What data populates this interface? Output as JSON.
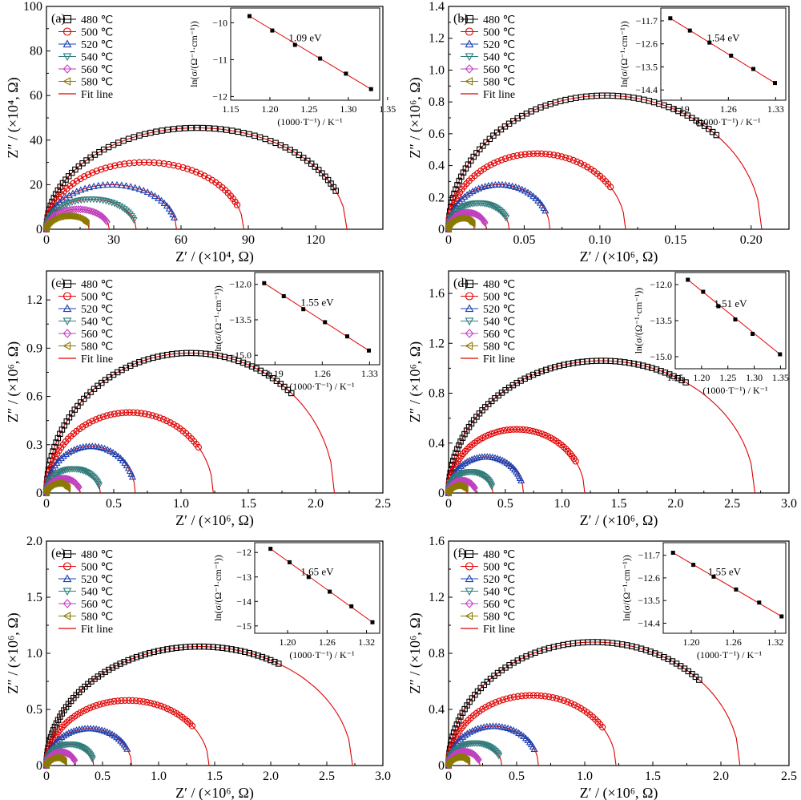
{
  "legend_labels": [
    "480 ℃",
    "500 ℃",
    "520 ℃",
    "540 ℃",
    "560 ℃",
    "580 ℃",
    "Fit line"
  ],
  "series_colors": [
    "#000000",
    "#e00000",
    "#1a3fb0",
    "#2e7d7d",
    "#c040c0",
    "#8a7a00",
    "#e00000"
  ],
  "marker_shapes": [
    "square",
    "circle",
    "triangle-up",
    "triangle-down",
    "diamond",
    "triangle-left"
  ],
  "inset_ylabel": "ln(σ/(Ω⁻¹·cm⁻¹))",
  "inset_xlabel": "(1000·T⁻¹) / K⁻¹",
  "chart_data": [
    {
      "panel": "(a)",
      "type": "scatter",
      "xlabel": "Z′ / (×10⁴, Ω)",
      "ylabel": "Z″ / (×10⁴, Ω)",
      "xlim": [
        0,
        150
      ],
      "ylim": [
        0,
        100
      ],
      "xticks": [
        "0",
        "30",
        "60",
        "90",
        "120"
      ],
      "xtick_values": [
        0,
        30,
        60,
        90,
        120
      ],
      "yticks": [
        "0",
        "20",
        "40",
        "60",
        "80",
        "100"
      ],
      "ytick_values": [
        0,
        20,
        40,
        60,
        80,
        100
      ],
      "series": [
        {
          "name": "480 ℃",
          "x_end": 129,
          "fit_end": 134,
          "peak": 45.5
        },
        {
          "name": "500 ℃",
          "x_end": 85,
          "fit_end": 88,
          "peak": 30
        },
        {
          "name": "520 ℃",
          "x_end": 57,
          "fit_end": 58,
          "peak": 20
        },
        {
          "name": "540 ℃",
          "x_end": 39,
          "fit_end": 40,
          "peak": 13.5
        },
        {
          "name": "560 ℃",
          "x_end": 27,
          "fit_end": 28,
          "peak": 9
        },
        {
          "name": "580 ℃",
          "x_end": 18,
          "fit_end": 19,
          "peak": 6
        }
      ],
      "inset": {
        "xlim": [
          1.15,
          1.34
        ],
        "ylim": [
          -12.1,
          -9.6
        ],
        "xticks": [
          "1.15",
          "1.20",
          "1.25",
          "1.30",
          "1.35"
        ],
        "xtick_values": [
          1.15,
          1.2,
          1.25,
          1.3,
          1.35
        ],
        "yticks": [
          "−10",
          "−11",
          "−12"
        ],
        "ytick_values": [
          -10,
          -11,
          -12
        ],
        "points": [
          [
            1.174,
            -9.82
          ],
          [
            1.203,
            -10.21
          ],
          [
            1.232,
            -10.6
          ],
          [
            1.264,
            -10.97
          ],
          [
            1.297,
            -11.38
          ],
          [
            1.329,
            -11.8
          ]
        ],
        "ea_label": "1.09 eV"
      }
    },
    {
      "panel": "(b)",
      "type": "scatter",
      "xlabel": "Z′ / (×10⁶, Ω)",
      "ylabel": "Z″ / (×10⁶, Ω)",
      "xlim": [
        0,
        0.225
      ],
      "ylim": [
        0,
        1.4
      ],
      "xticks": [
        "0",
        "0.05",
        "0.10",
        "0.15",
        "0.20"
      ],
      "xtick_values": [
        0,
        0.05,
        0.1,
        0.15,
        0.2
      ],
      "yticks": [
        "0",
        "0.2",
        "0.4",
        "0.6",
        "0.8",
        "1.0",
        "1.2",
        "1.4"
      ],
      "ytick_values": [
        0,
        0.2,
        0.4,
        0.6,
        0.8,
        1.0,
        1.2,
        1.4
      ],
      "series": [
        {
          "name": "480 ℃",
          "x_end": 0.177,
          "fit_end": 0.207,
          "peak": 0.84
        },
        {
          "name": "500 ℃",
          "x_end": 0.107,
          "fit_end": 0.117,
          "peak": 0.475
        },
        {
          "name": "520 ℃",
          "x_end": 0.064,
          "fit_end": 0.067,
          "peak": 0.28
        },
        {
          "name": "540 ℃",
          "x_end": 0.038,
          "fit_end": 0.04,
          "peak": 0.165
        },
        {
          "name": "560 ℃",
          "x_end": 0.024,
          "fit_end": 0.025,
          "peak": 0.105
        },
        {
          "name": "580 ℃",
          "x_end": 0.016,
          "fit_end": 0.017,
          "peak": 0.07
        }
      ],
      "inset": {
        "xlim": [
          1.16,
          1.345
        ],
        "ylim": [
          -14.8,
          -11.2
        ],
        "xticks": [
          "1.19",
          "1.26",
          "1.33"
        ],
        "xtick_values": [
          1.19,
          1.26,
          1.33
        ],
        "yticks": [
          "−11.7",
          "−12.6",
          "−13.5",
          "−14.4"
        ],
        "ytick_values": [
          -11.7,
          -12.6,
          -13.5,
          -14.4
        ],
        "points": [
          [
            1.174,
            -11.6
          ],
          [
            1.203,
            -12.08
          ],
          [
            1.232,
            -12.55
          ],
          [
            1.264,
            -13.06
          ],
          [
            1.297,
            -13.58
          ],
          [
            1.329,
            -14.13
          ]
        ],
        "ea_label": "1.54 eV"
      }
    },
    {
      "panel": "(c)",
      "type": "scatter",
      "xlabel": "Z′ / (×10⁶, Ω)",
      "ylabel": "Z″ / (×10⁶, Ω)",
      "xlim": [
        0,
        2.5
      ],
      "ylim": [
        0,
        1.38
      ],
      "xticks": [
        "0",
        "0.5",
        "1.0",
        "1.5",
        "2.0",
        "2.5"
      ],
      "xtick_values": [
        0,
        0.5,
        1.0,
        1.5,
        2.0,
        2.5
      ],
      "yticks": [
        "0",
        "0.3",
        "0.6",
        "0.9",
        "1.2"
      ],
      "ytick_values": [
        0,
        0.3,
        0.6,
        0.9,
        1.2
      ],
      "series": [
        {
          "name": "480 ℃",
          "x_end": 1.82,
          "fit_end": 2.14,
          "peak": 0.87
        },
        {
          "name": "500 ℃",
          "x_end": 1.13,
          "fit_end": 1.24,
          "peak": 0.5
        },
        {
          "name": "520 ℃",
          "x_end": 0.64,
          "fit_end": 0.66,
          "peak": 0.29
        },
        {
          "name": "540 ℃",
          "x_end": 0.39,
          "fit_end": 0.4,
          "peak": 0.15
        },
        {
          "name": "560 ℃",
          "x_end": 0.24,
          "fit_end": 0.25,
          "peak": 0.09
        },
        {
          "name": "580 ℃",
          "x_end": 0.16,
          "fit_end": 0.17,
          "peak": 0.06
        }
      ],
      "inset": {
        "xlim": [
          1.16,
          1.345
        ],
        "ylim": [
          -15.4,
          -11.5
        ],
        "xticks": [
          "1.19",
          "1.26",
          "1.33"
        ],
        "xtick_values": [
          1.19,
          1.26,
          1.33
        ],
        "yticks": [
          "−12.0",
          "−13.5",
          "−15.0"
        ],
        "ytick_values": [
          -12.0,
          -13.5,
          -15.0
        ],
        "points": [
          [
            1.174,
            -11.95
          ],
          [
            1.203,
            -12.5
          ],
          [
            1.232,
            -13.05
          ],
          [
            1.264,
            -13.6
          ],
          [
            1.297,
            -14.2
          ],
          [
            1.329,
            -14.8
          ]
        ],
        "ea_label": "1.55 eV"
      }
    },
    {
      "panel": "(d)",
      "type": "scatter",
      "xlabel": "Z′ / (×10⁶, Ω)",
      "ylabel": "Z″ / (×10⁶, Ω)",
      "xlim": [
        0,
        3.0
      ],
      "ylim": [
        0,
        1.78
      ],
      "xticks": [
        "0",
        "0.5",
        "1.0",
        "1.5",
        "2.0",
        "2.5",
        "3.0"
      ],
      "xtick_values": [
        0,
        0.5,
        1.0,
        1.5,
        2.0,
        2.5,
        3.0
      ],
      "yticks": [
        "0",
        "0.4",
        "0.8",
        "1.2",
        "1.6"
      ],
      "ytick_values": [
        0,
        0.4,
        0.8,
        1.2,
        1.6
      ],
      "series": [
        {
          "name": "480 ℃",
          "x_end": 2.09,
          "fit_end": 2.7,
          "peak": 1.06
        },
        {
          "name": "500 ℃",
          "x_end": 1.12,
          "fit_end": 1.2,
          "peak": 0.51
        },
        {
          "name": "520 ℃",
          "x_end": 0.64,
          "fit_end": 0.66,
          "peak": 0.29
        },
        {
          "name": "540 ℃",
          "x_end": 0.38,
          "fit_end": 0.39,
          "peak": 0.17
        },
        {
          "name": "560 ℃",
          "x_end": 0.23,
          "fit_end": 0.24,
          "peak": 0.1
        },
        {
          "name": "580 ℃",
          "x_end": 0.15,
          "fit_end": 0.16,
          "peak": 0.06
        }
      ],
      "inset": {
        "xlim": [
          1.15,
          1.36
        ],
        "ylim": [
          -15.5,
          -11.5
        ],
        "xticks": [
          "1.15",
          "1.20",
          "1.25",
          "1.30",
          "1.35"
        ],
        "xtick_values": [
          1.15,
          1.2,
          1.25,
          1.3,
          1.35
        ],
        "yticks": [
          "−12.0",
          "−13.5",
          "−15.0"
        ],
        "ytick_values": [
          -12.0,
          -13.5,
          -15.0
        ],
        "points": [
          [
            1.174,
            -11.8
          ],
          [
            1.203,
            -12.3
          ],
          [
            1.232,
            -12.9
          ],
          [
            1.264,
            -13.45
          ],
          [
            1.297,
            -14.05
          ],
          [
            1.349,
            -14.9
          ]
        ],
        "ea_label": "1.51 eV"
      }
    },
    {
      "panel": "(e)",
      "type": "scatter",
      "xlabel": "Z′ / (×10⁶, Ω)",
      "ylabel": "Z″ / (×10⁶, Ω)",
      "xlim": [
        0,
        3.0
      ],
      "ylim": [
        0,
        2.0
      ],
      "xticks": [
        "0",
        "0.5",
        "1.0",
        "1.5",
        "2.0",
        "2.5",
        "3.0"
      ],
      "xtick_values": [
        0,
        0.5,
        1.0,
        1.5,
        2.0,
        2.5,
        3.0
      ],
      "yticks": [
        "0",
        "0.5",
        "1.0",
        "1.5",
        "2.0"
      ],
      "ytick_values": [
        0,
        0.5,
        1.0,
        1.5,
        2.0
      ],
      "series": [
        {
          "name": "480 ℃",
          "x_end": 2.07,
          "fit_end": 2.73,
          "peak": 1.06
        },
        {
          "name": "500 ℃",
          "x_end": 1.3,
          "fit_end": 1.45,
          "peak": 0.58
        },
        {
          "name": "520 ℃",
          "x_end": 0.72,
          "fit_end": 0.76,
          "peak": 0.33
        },
        {
          "name": "540 ℃",
          "x_end": 0.41,
          "fit_end": 0.42,
          "peak": 0.19
        },
        {
          "name": "560 ℃",
          "x_end": 0.25,
          "fit_end": 0.26,
          "peak": 0.12
        },
        {
          "name": "580 ℃",
          "x_end": 0.16,
          "fit_end": 0.17,
          "peak": 0.07
        }
      ],
      "inset": {
        "xlim": [
          1.15,
          1.34
        ],
        "ylim": [
          -15.3,
          -11.6
        ],
        "xticks": [
          "1.20",
          "1.26",
          "1.32"
        ],
        "xtick_values": [
          1.2,
          1.26,
          1.32
        ],
        "yticks": [
          "−12",
          "−13",
          "−14",
          "−15"
        ],
        "ytick_values": [
          -12,
          -13,
          -14,
          -15
        ],
        "points": [
          [
            1.174,
            -11.85
          ],
          [
            1.203,
            -12.4
          ],
          [
            1.232,
            -13.0
          ],
          [
            1.264,
            -13.6
          ],
          [
            1.297,
            -14.2
          ],
          [
            1.329,
            -14.85
          ]
        ],
        "ea_label": "1.65 eV"
      }
    },
    {
      "panel": "(f)",
      "type": "scatter",
      "xlabel": "Z′ / (×10⁶, Ω)",
      "ylabel": "Z″ / (×10⁶, Ω)",
      "xlim": [
        0,
        2.5
      ],
      "ylim": [
        0,
        1.6
      ],
      "xticks": [
        "0",
        "0.5",
        "1.0",
        "1.5",
        "2.0",
        "2.5"
      ],
      "xtick_values": [
        0,
        0.5,
        1.0,
        1.5,
        2.0,
        2.5
      ],
      "yticks": [
        "0",
        "0.4",
        "0.8",
        "1.2",
        "1.6"
      ],
      "ytick_values": [
        0,
        0.4,
        0.8,
        1.2,
        1.6
      ],
      "series": [
        {
          "name": "480 ℃",
          "x_end": 1.84,
          "fit_end": 2.14,
          "peak": 0.88
        },
        {
          "name": "500 ℃",
          "x_end": 1.13,
          "fit_end": 1.23,
          "peak": 0.5
        },
        {
          "name": "520 ℃",
          "x_end": 0.63,
          "fit_end": 0.66,
          "peak": 0.28
        },
        {
          "name": "540 ℃",
          "x_end": 0.37,
          "fit_end": 0.39,
          "peak": 0.16
        },
        {
          "name": "560 ℃",
          "x_end": 0.22,
          "fit_end": 0.23,
          "peak": 0.1
        },
        {
          "name": "580 ℃",
          "x_end": 0.14,
          "fit_end": 0.15,
          "peak": 0.06
        }
      ],
      "inset": {
        "xlim": [
          1.16,
          1.335
        ],
        "ylim": [
          -14.8,
          -11.2
        ],
        "xticks": [
          "1.20",
          "1.26",
          "1.32"
        ],
        "xtick_values": [
          1.2,
          1.26,
          1.32
        ],
        "yticks": [
          "−11.7",
          "−12.6",
          "−13.5",
          "−14.4"
        ],
        "ytick_values": [
          -11.7,
          -12.6,
          -13.5,
          -14.4
        ],
        "points": [
          [
            1.174,
            -11.6
          ],
          [
            1.203,
            -12.08
          ],
          [
            1.232,
            -12.55
          ],
          [
            1.264,
            -13.06
          ],
          [
            1.297,
            -13.58
          ],
          [
            1.329,
            -14.13
          ]
        ],
        "ea_label": "1.55 eV"
      }
    }
  ]
}
